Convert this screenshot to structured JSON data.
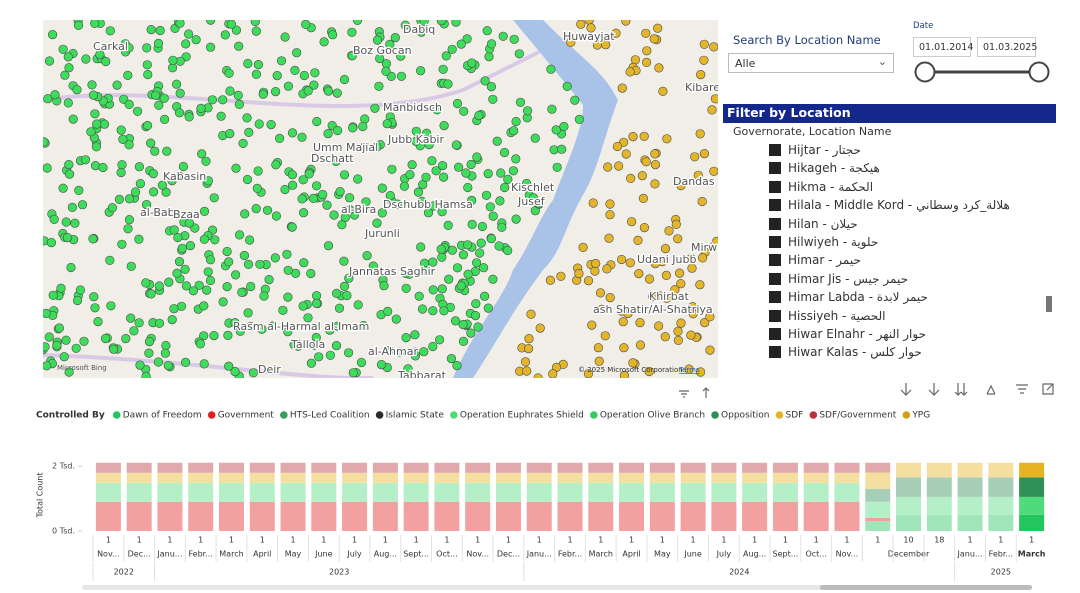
{
  "map": {
    "places": [
      "Dabiq",
      "Carkal",
      "Boz Gocan",
      "Manbidsch",
      "Umm Majial",
      "Dschatt",
      "Jubb Kabir",
      "Kabasin",
      "al-Bab",
      "Bzaa",
      "al-Bira",
      "Dschubb Hamsa",
      "Jurunli",
      "Jannatas Saghir",
      "Kischlet",
      "Jusef",
      "Udani Jubb",
      "Khirbat",
      "ash Shatir/Al-Shatriya",
      "Rasm al-Harmal al-Imam",
      "Tallola",
      "al-Ahmar",
      "Tabbarat",
      "Deir",
      "Huwayjat",
      "Kibare",
      "Mirwan",
      "Dandas"
    ],
    "provider": "Microsoft Bing",
    "copyright": "© 2025 Microsoft Corporation",
    "terms": "Terms"
  },
  "search": {
    "title": "Search By Location Name",
    "value": "Alle"
  },
  "date": {
    "title": "Date",
    "start": "01.01.2014",
    "end": "01.03.2025"
  },
  "filter": {
    "title": "Filter by Location",
    "header": "Governorate, Location Name",
    "items": [
      "Hijtar - حجتار",
      "Hikageh - هيكجة",
      "Hikma - الحكمة",
      "Hilala - Middle Kord - هلالة_كرد وسطاني",
      "Hilan - حيلان",
      "Hilwiyeh - حلوية",
      "Himar - حيمر",
      "Himar Jis - حيمر جيس",
      "Himar Labda - حيمر لابدة",
      "Hissiyeh - الحصية",
      "Hiwar Elnahr - حوار النهر",
      "Hiwar Kalas - حوار كلس"
    ]
  },
  "chart_data": {
    "type": "bar",
    "stacked": true,
    "legend_title": "Controlled By",
    "y_label": "Total Count",
    "ylim": [
      0,
      2200
    ],
    "yticks": [
      {
        "value": 0,
        "label": "0 Tsd."
      },
      {
        "value": 2000,
        "label": "2 Tsd."
      }
    ],
    "day_labels": [
      "1",
      "1",
      "1",
      "1",
      "1",
      "1",
      "1",
      "1",
      "1",
      "1",
      "1",
      "1",
      "1",
      "1",
      "1",
      "1",
      "1",
      "1",
      "1",
      "1",
      "1",
      "1",
      "1",
      "1",
      "1",
      "1",
      "10",
      "18",
      "1",
      "1",
      "1"
    ],
    "categories": [
      "Nov...",
      "Dec...",
      "Janu...",
      "Febr...",
      "March",
      "April",
      "May",
      "June",
      "July",
      "Aug...",
      "Sept...",
      "Oct...",
      "Nov...",
      "Dec...",
      "Janu...",
      "Febr...",
      "March",
      "April",
      "May",
      "June",
      "July",
      "Aug...",
      "Sept...",
      "Oct...",
      "Nov...",
      "December",
      null,
      null,
      "Janu...",
      "Febr...",
      "March"
    ],
    "years": [
      "2022",
      null,
      "2023",
      null,
      null,
      null,
      null,
      null,
      null,
      null,
      null,
      null,
      null,
      null,
      "2024",
      null,
      null,
      null,
      null,
      null,
      null,
      null,
      null,
      null,
      null,
      null,
      null,
      null,
      "2025",
      null,
      null
    ],
    "series": [
      {
        "name": "Dawn of Freedom",
        "color": "#22c55e",
        "values": [
          0,
          0,
          0,
          0,
          0,
          0,
          0,
          0,
          0,
          0,
          0,
          0,
          0,
          0,
          0,
          0,
          0,
          0,
          0,
          0,
          0,
          0,
          0,
          0,
          0,
          300,
          500,
          500,
          500,
          500,
          500
        ]
      },
      {
        "name": "Government",
        "color": "#e0201c",
        "values": [
          900,
          900,
          900,
          900,
          900,
          900,
          900,
          900,
          900,
          900,
          900,
          900,
          900,
          900,
          900,
          900,
          900,
          900,
          900,
          900,
          900,
          900,
          900,
          900,
          900,
          100,
          0,
          0,
          0,
          0,
          0
        ]
      },
      {
        "name": "HTS-Led Coalition",
        "color": "#3c9c5c",
        "values": [
          0,
          0,
          0,
          0,
          0,
          0,
          0,
          0,
          0,
          0,
          0,
          0,
          0,
          0,
          0,
          0,
          0,
          0,
          0,
          0,
          0,
          0,
          0,
          0,
          0,
          0,
          0,
          0,
          0,
          0,
          0
        ]
      },
      {
        "name": "Islamic State",
        "color": "#2b2b2b",
        "values": [
          0,
          0,
          0,
          0,
          0,
          0,
          0,
          0,
          0,
          0,
          0,
          0,
          0,
          0,
          0,
          0,
          0,
          0,
          0,
          0,
          0,
          0,
          0,
          0,
          0,
          0,
          0,
          0,
          0,
          0,
          0
        ]
      },
      {
        "name": "Operation Euphrates Shield",
        "color": "#4edb7c",
        "values": [
          580,
          580,
          580,
          580,
          580,
          580,
          580,
          580,
          580,
          580,
          580,
          580,
          580,
          580,
          580,
          580,
          580,
          580,
          580,
          580,
          580,
          580,
          580,
          580,
          580,
          500,
          550,
          550,
          550,
          550,
          550
        ]
      },
      {
        "name": "Operation Olive Branch",
        "color": "#33cc66",
        "values": [
          0,
          0,
          0,
          0,
          0,
          0,
          0,
          0,
          0,
          0,
          0,
          0,
          0,
          0,
          0,
          0,
          0,
          0,
          0,
          0,
          0,
          0,
          0,
          0,
          0,
          0,
          0,
          0,
          0,
          0,
          0
        ]
      },
      {
        "name": "Opposition",
        "color": "#2f8f55",
        "values": [
          0,
          0,
          0,
          0,
          0,
          0,
          0,
          0,
          0,
          0,
          0,
          0,
          0,
          0,
          0,
          0,
          0,
          0,
          0,
          0,
          0,
          0,
          0,
          0,
          0,
          400,
          600,
          600,
          600,
          600,
          600
        ]
      },
      {
        "name": "SDF",
        "color": "#e6b422",
        "values": [
          310,
          310,
          310,
          310,
          310,
          310,
          310,
          310,
          310,
          310,
          310,
          310,
          310,
          310,
          310,
          310,
          310,
          310,
          310,
          310,
          310,
          310,
          310,
          310,
          310,
          500,
          450,
          450,
          450,
          450,
          450
        ]
      },
      {
        "name": "SDF/Government",
        "color": "#b8323e",
        "values": [
          310,
          310,
          310,
          310,
          310,
          310,
          310,
          310,
          310,
          310,
          310,
          310,
          310,
          310,
          310,
          310,
          310,
          310,
          310,
          310,
          310,
          310,
          310,
          310,
          310,
          300,
          0,
          0,
          0,
          0,
          0
        ]
      },
      {
        "name": "YPG",
        "color": "#d4a017",
        "values": [
          0,
          0,
          0,
          0,
          0,
          0,
          0,
          0,
          0,
          0,
          0,
          0,
          0,
          0,
          0,
          0,
          0,
          0,
          0,
          0,
          0,
          0,
          0,
          0,
          0,
          0,
          0,
          0,
          0,
          0,
          0
        ]
      }
    ]
  }
}
